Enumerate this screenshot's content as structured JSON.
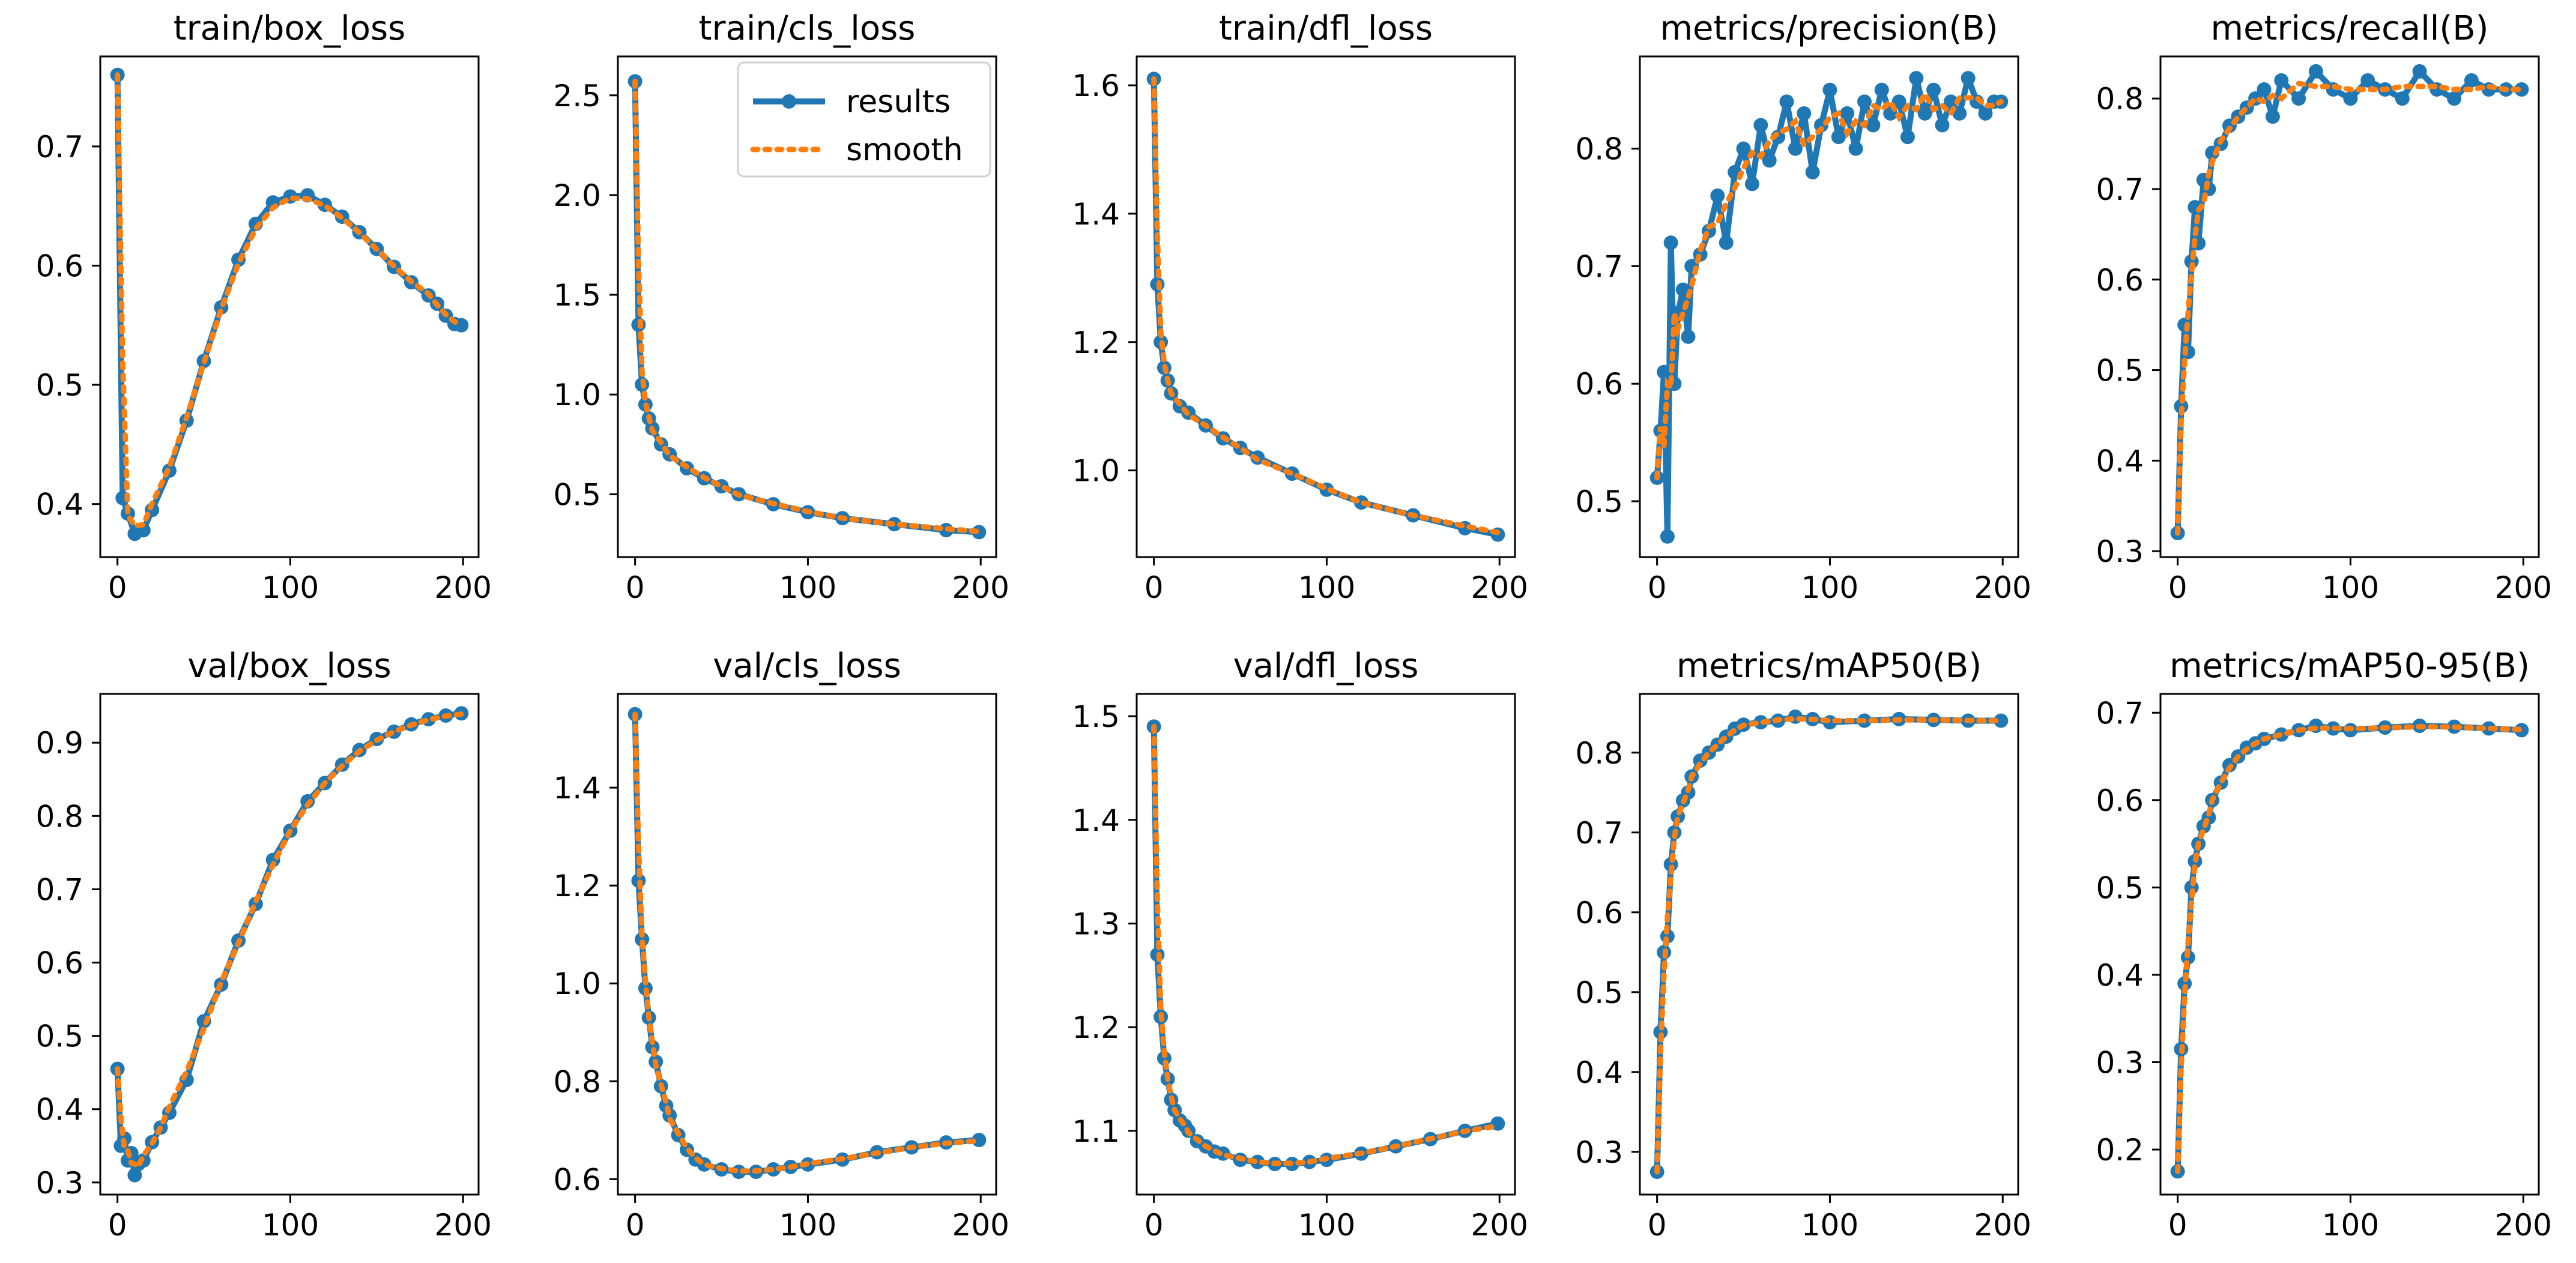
{
  "chart_data": [
    {
      "type": "line",
      "title": "train/box_loss",
      "xlim": [
        -9.95,
        208.95
      ],
      "ylim": [
        0.3555,
        0.7755
      ],
      "xticks": [
        "0",
        "100",
        "200"
      ],
      "yticks": [
        {
          "v": 0.4,
          "label": "0.4"
        },
        {
          "v": 0.5,
          "label": "0.5"
        },
        {
          "v": 0.6,
          "label": "0.6"
        },
        {
          "v": 0.7,
          "label": "0.7"
        }
      ],
      "x": [
        0,
        3,
        6,
        10,
        15,
        20,
        30,
        40,
        50,
        60,
        70,
        80,
        90,
        100,
        110,
        120,
        130,
        140,
        150,
        160,
        170,
        180,
        185,
        190,
        195,
        199
      ],
      "y": [
        0.76,
        0.405,
        0.392,
        0.375,
        0.378,
        0.395,
        0.428,
        0.47,
        0.52,
        0.565,
        0.605,
        0.635,
        0.653,
        0.658,
        0.659,
        0.651,
        0.641,
        0.628,
        0.614,
        0.599,
        0.586,
        0.575,
        0.568,
        0.558,
        0.551,
        0.55
      ]
    },
    {
      "type": "line",
      "title": "train/cls_loss",
      "xlim": [
        -9.95,
        208.95
      ],
      "ylim": [
        0.185,
        2.695
      ],
      "xticks": [
        "0",
        "100",
        "200"
      ],
      "yticks": [
        {
          "v": 0.5,
          "label": "0.5"
        },
        {
          "v": 1.0,
          "label": "1.0"
        },
        {
          "v": 1.5,
          "label": "1.5"
        },
        {
          "v": 2.0,
          "label": "2.0"
        },
        {
          "v": 2.5,
          "label": "2.5"
        }
      ],
      "legend": {
        "position": "upper-right",
        "entries": [
          "results",
          "smooth"
        ]
      },
      "x": [
        0,
        2,
        4,
        6,
        8,
        10,
        15,
        20,
        30,
        40,
        50,
        60,
        80,
        100,
        120,
        150,
        180,
        199
      ],
      "y": [
        2.57,
        1.35,
        1.05,
        0.95,
        0.88,
        0.83,
        0.75,
        0.7,
        0.63,
        0.58,
        0.54,
        0.5,
        0.45,
        0.41,
        0.38,
        0.35,
        0.32,
        0.31
      ]
    },
    {
      "type": "line",
      "title": "train/dfl_loss",
      "xlim": [
        -9.95,
        208.95
      ],
      "ylim": [
        0.865,
        1.645
      ],
      "xticks": [
        "0",
        "100",
        "200"
      ],
      "yticks": [
        {
          "v": 1.0,
          "label": "1.0"
        },
        {
          "v": 1.2,
          "label": "1.2"
        },
        {
          "v": 1.4,
          "label": "1.4"
        },
        {
          "v": 1.6,
          "label": "1.6"
        }
      ],
      "x": [
        0,
        2,
        4,
        6,
        8,
        10,
        15,
        20,
        30,
        40,
        50,
        60,
        80,
        100,
        120,
        150,
        180,
        199
      ],
      "y": [
        1.61,
        1.29,
        1.2,
        1.16,
        1.14,
        1.12,
        1.1,
        1.09,
        1.07,
        1.05,
        1.035,
        1.02,
        0.995,
        0.97,
        0.95,
        0.93,
        0.91,
        0.9
      ]
    },
    {
      "type": "line",
      "title": "metrics/precision(B)",
      "xlim": [
        -9.95,
        208.95
      ],
      "ylim": [
        0.4525,
        0.8785
      ],
      "xticks": [
        "0",
        "100",
        "200"
      ],
      "yticks": [
        {
          "v": 0.5,
          "label": "0.5"
        },
        {
          "v": 0.6,
          "label": "0.6"
        },
        {
          "v": 0.7,
          "label": "0.7"
        },
        {
          "v": 0.8,
          "label": "0.8"
        }
      ],
      "x": [
        0,
        2,
        4,
        6,
        8,
        10,
        12,
        15,
        18,
        20,
        25,
        30,
        35,
        40,
        45,
        50,
        55,
        60,
        65,
        70,
        75,
        80,
        85,
        90,
        95,
        100,
        105,
        110,
        115,
        120,
        125,
        130,
        135,
        140,
        145,
        150,
        155,
        160,
        165,
        170,
        175,
        180,
        185,
        190,
        195,
        199
      ],
      "y": [
        0.52,
        0.56,
        0.61,
        0.47,
        0.72,
        0.6,
        0.66,
        0.68,
        0.64,
        0.7,
        0.71,
        0.73,
        0.76,
        0.72,
        0.78,
        0.8,
        0.77,
        0.82,
        0.79,
        0.81,
        0.84,
        0.8,
        0.83,
        0.78,
        0.82,
        0.85,
        0.81,
        0.83,
        0.8,
        0.84,
        0.82,
        0.85,
        0.83,
        0.84,
        0.81,
        0.86,
        0.83,
        0.85,
        0.82,
        0.84,
        0.83,
        0.86,
        0.84,
        0.83,
        0.84,
        0.84
      ]
    },
    {
      "type": "line",
      "title": "metrics/recall(B)",
      "xlim": [
        -9.95,
        208.95
      ],
      "ylim": [
        0.2935,
        0.8465
      ],
      "xticks": [
        "0",
        "100",
        "200"
      ],
      "yticks": [
        {
          "v": 0.3,
          "label": "0.3"
        },
        {
          "v": 0.4,
          "label": "0.4"
        },
        {
          "v": 0.5,
          "label": "0.5"
        },
        {
          "v": 0.6,
          "label": "0.6"
        },
        {
          "v": 0.7,
          "label": "0.7"
        },
        {
          "v": 0.8,
          "label": "0.8"
        }
      ],
      "x": [
        0,
        2,
        4,
        6,
        8,
        10,
        12,
        15,
        18,
        20,
        25,
        30,
        35,
        40,
        45,
        50,
        55,
        60,
        70,
        80,
        90,
        100,
        110,
        120,
        130,
        140,
        150,
        160,
        170,
        180,
        190,
        199
      ],
      "y": [
        0.32,
        0.46,
        0.55,
        0.52,
        0.62,
        0.68,
        0.64,
        0.71,
        0.7,
        0.74,
        0.75,
        0.77,
        0.78,
        0.79,
        0.8,
        0.81,
        0.78,
        0.82,
        0.8,
        0.83,
        0.81,
        0.8,
        0.82,
        0.81,
        0.8,
        0.83,
        0.81,
        0.8,
        0.82,
        0.81,
        0.81,
        0.81
      ]
    },
    {
      "type": "line",
      "title": "val/box_loss",
      "xlim": [
        -9.95,
        208.95
      ],
      "ylim": [
        0.2835,
        0.9665
      ],
      "xticks": [
        "0",
        "100",
        "200"
      ],
      "yticks": [
        {
          "v": 0.3,
          "label": "0.3"
        },
        {
          "v": 0.4,
          "label": "0.4"
        },
        {
          "v": 0.5,
          "label": "0.5"
        },
        {
          "v": 0.6,
          "label": "0.6"
        },
        {
          "v": 0.7,
          "label": "0.7"
        },
        {
          "v": 0.8,
          "label": "0.8"
        },
        {
          "v": 0.9,
          "label": "0.9"
        }
      ],
      "x": [
        0,
        2,
        4,
        6,
        8,
        10,
        12,
        15,
        20,
        25,
        30,
        40,
        50,
        60,
        70,
        80,
        90,
        100,
        110,
        120,
        130,
        140,
        150,
        160,
        170,
        180,
        190,
        199
      ],
      "y": [
        0.455,
        0.35,
        0.36,
        0.33,
        0.34,
        0.31,
        0.325,
        0.33,
        0.355,
        0.375,
        0.395,
        0.44,
        0.52,
        0.57,
        0.63,
        0.68,
        0.74,
        0.78,
        0.82,
        0.845,
        0.87,
        0.89,
        0.905,
        0.915,
        0.925,
        0.932,
        0.937,
        0.94
      ]
    },
    {
      "type": "line",
      "title": "val/cls_loss",
      "xlim": [
        -9.95,
        208.95
      ],
      "ylim": [
        0.5685,
        1.5915
      ],
      "xticks": [
        "0",
        "100",
        "200"
      ],
      "yticks": [
        {
          "v": 0.6,
          "label": "0.6"
        },
        {
          "v": 0.8,
          "label": "0.8"
        },
        {
          "v": 1.0,
          "label": "1.0"
        },
        {
          "v": 1.2,
          "label": "1.2"
        },
        {
          "v": 1.4,
          "label": "1.4"
        }
      ],
      "x": [
        0,
        2,
        4,
        6,
        8,
        10,
        12,
        15,
        18,
        20,
        25,
        30,
        35,
        40,
        50,
        60,
        70,
        80,
        90,
        100,
        120,
        140,
        160,
        180,
        199
      ],
      "y": [
        1.55,
        1.21,
        1.09,
        0.99,
        0.93,
        0.87,
        0.84,
        0.79,
        0.75,
        0.73,
        0.69,
        0.66,
        0.64,
        0.63,
        0.62,
        0.615,
        0.615,
        0.62,
        0.625,
        0.63,
        0.64,
        0.655,
        0.665,
        0.675,
        0.68
      ]
    },
    {
      "type": "line",
      "title": "val/dfl_loss",
      "xlim": [
        -9.95,
        208.95
      ],
      "ylim": [
        1.0385,
        1.5215
      ],
      "xticks": [
        "0",
        "100",
        "200"
      ],
      "yticks": [
        {
          "v": 1.1,
          "label": "1.1"
        },
        {
          "v": 1.2,
          "label": "1.2"
        },
        {
          "v": 1.3,
          "label": "1.3"
        },
        {
          "v": 1.4,
          "label": "1.4"
        },
        {
          "v": 1.5,
          "label": "1.5"
        }
      ],
      "x": [
        0,
        2,
        4,
        6,
        8,
        10,
        12,
        15,
        18,
        20,
        25,
        30,
        35,
        40,
        50,
        60,
        70,
        80,
        90,
        100,
        120,
        140,
        160,
        180,
        199
      ],
      "y": [
        1.49,
        1.27,
        1.21,
        1.17,
        1.15,
        1.13,
        1.12,
        1.11,
        1.105,
        1.1,
        1.09,
        1.085,
        1.08,
        1.078,
        1.072,
        1.07,
        1.068,
        1.068,
        1.07,
        1.072,
        1.078,
        1.085,
        1.092,
        1.1,
        1.107
      ]
    },
    {
      "type": "line",
      "title": "metrics/mAP50(B)",
      "xlim": [
        -9.95,
        208.95
      ],
      "ylim": [
        0.2465,
        0.8735
      ],
      "xticks": [
        "0",
        "100",
        "200"
      ],
      "yticks": [
        {
          "v": 0.3,
          "label": "0.3"
        },
        {
          "v": 0.4,
          "label": "0.4"
        },
        {
          "v": 0.5,
          "label": "0.5"
        },
        {
          "v": 0.6,
          "label": "0.6"
        },
        {
          "v": 0.7,
          "label": "0.7"
        },
        {
          "v": 0.8,
          "label": "0.8"
        }
      ],
      "x": [
        0,
        2,
        4,
        6,
        8,
        10,
        12,
        15,
        18,
        20,
        25,
        30,
        35,
        40,
        45,
        50,
        60,
        70,
        80,
        90,
        100,
        120,
        140,
        160,
        180,
        199
      ],
      "y": [
        0.275,
        0.45,
        0.55,
        0.57,
        0.66,
        0.7,
        0.72,
        0.74,
        0.75,
        0.77,
        0.79,
        0.8,
        0.81,
        0.82,
        0.83,
        0.835,
        0.838,
        0.84,
        0.845,
        0.842,
        0.838,
        0.84,
        0.842,
        0.841,
        0.84,
        0.84
      ]
    },
    {
      "type": "line",
      "title": "metrics/mAP50-95(B)",
      "xlim": [
        -9.95,
        208.95
      ],
      "ylim": [
        0.1485,
        0.7215
      ],
      "xticks": [
        "0",
        "100",
        "200"
      ],
      "yticks": [
        {
          "v": 0.2,
          "label": "0.2"
        },
        {
          "v": 0.3,
          "label": "0.3"
        },
        {
          "v": 0.4,
          "label": "0.4"
        },
        {
          "v": 0.5,
          "label": "0.5"
        },
        {
          "v": 0.6,
          "label": "0.6"
        },
        {
          "v": 0.7,
          "label": "0.7"
        }
      ],
      "x": [
        0,
        2,
        4,
        6,
        8,
        10,
        12,
        15,
        18,
        20,
        25,
        30,
        35,
        40,
        45,
        50,
        60,
        70,
        80,
        90,
        100,
        120,
        140,
        160,
        180,
        199
      ],
      "y": [
        0.175,
        0.315,
        0.39,
        0.42,
        0.5,
        0.53,
        0.55,
        0.57,
        0.58,
        0.6,
        0.62,
        0.64,
        0.65,
        0.66,
        0.665,
        0.67,
        0.675,
        0.68,
        0.685,
        0.682,
        0.68,
        0.683,
        0.685,
        0.684,
        0.682,
        0.68
      ]
    }
  ],
  "legend": {
    "results": "results",
    "smooth": "smooth"
  },
  "colors": {
    "results": "#1f77b4",
    "smooth": "#ff7f0e",
    "axes": "#000000"
  }
}
